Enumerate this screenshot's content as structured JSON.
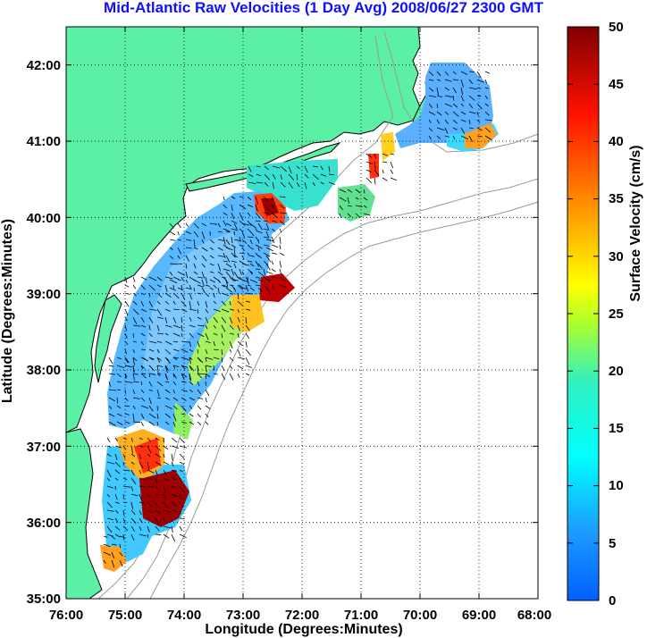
{
  "title": "Mid-Atlantic Raw Velocities (1 Day Avg) 2008/06/27 2300 GMT",
  "map": {
    "xlabel": "Longitude (Degrees:Minutes)",
    "ylabel": "Latitude (Degrees:Minutes)",
    "x_ticks": [
      "76:00",
      "75:00",
      "74:00",
      "73:00",
      "72:00",
      "71:00",
      "70:00",
      "69:00",
      "68:00"
    ],
    "y_ticks": [
      "42:00",
      "41:00",
      "40:00",
      "39:00",
      "38:00",
      "37:00",
      "36:00",
      "35:00"
    ],
    "x_range_deg": [
      -76,
      -68
    ],
    "y_range_deg": [
      35,
      42.5
    ],
    "grid": "dotted",
    "land_color": "#5cf0a6",
    "coast_color": "#000000",
    "bathymetry_color": "#9a9a9a"
  },
  "colorbar": {
    "label": "Surface Velocity (cm/s)",
    "ticks": [
      "50",
      "45",
      "40",
      "35",
      "30",
      "25",
      "20",
      "15",
      "10",
      "5",
      "0"
    ],
    "range": [
      0,
      50
    ],
    "colormap": "jet"
  }
}
